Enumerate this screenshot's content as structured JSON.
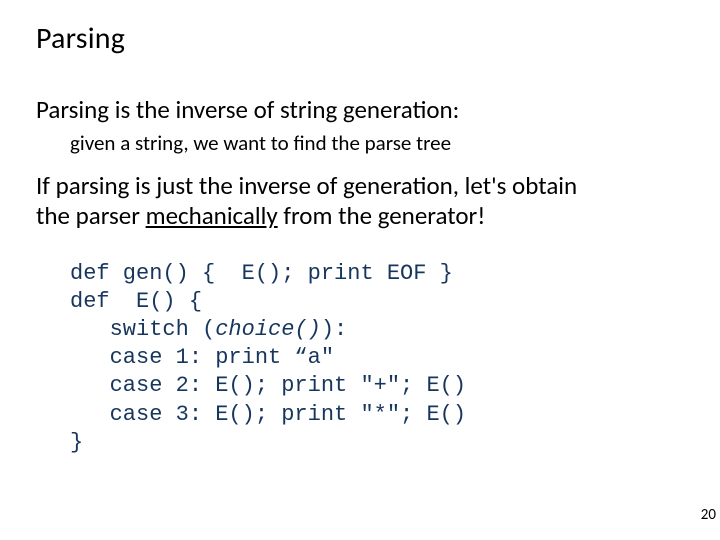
{
  "colors": {
    "background": "#ffffff",
    "text": "#000000",
    "code": "#17365d"
  },
  "typography": {
    "body_family": "Calibri",
    "code_family": "Consolas",
    "title_size_pt": 30,
    "body_size_pt": 25,
    "sub_size_pt": 21,
    "code_size_pt": 22,
    "pagenum_size_pt": 15
  },
  "title": "Parsing",
  "line1": "Parsing is the inverse of string generation:",
  "sub1": "given a string, we want to find the parse tree",
  "line2a": "If parsing is just the inverse of generation, let's obtain",
  "line2b_pre": "the parser ",
  "line2b_underlined": "mechanically",
  "line2b_post": " from the generator!",
  "code": {
    "l1": "def gen() {  E(); print EOF }",
    "l2": "def  E() {",
    "l3_pre": "   switch (",
    "l3_ital": "choice()",
    "l3_post": "):",
    "l4": "   case 1: print “a\"",
    "l5": "   case 2: E(); print \"+\"; E()",
    "l6": "   case 3: E(); print \"*\"; E()",
    "l7": "}"
  },
  "page_number": "20"
}
